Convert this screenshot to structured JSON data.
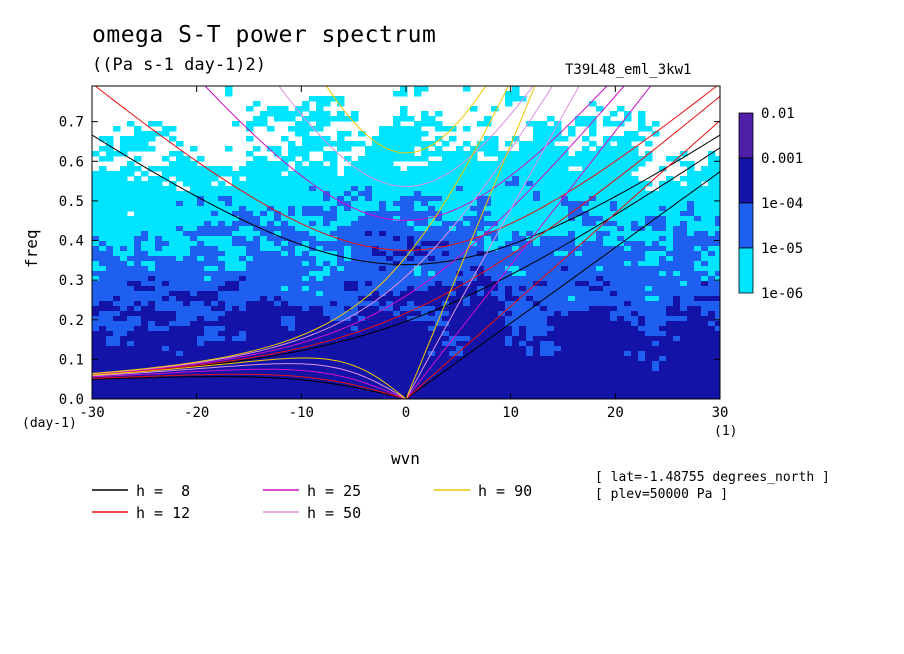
{
  "title": "omega S-T power spectrum",
  "units": "((Pa s-1 day-1)2)",
  "run_id": "T39L48_eml_3kw1",
  "notes": [
    "[ lat=-1.48755 degrees_north ]",
    "[ plev=50000 Pa ]"
  ],
  "chart_data": {
    "type": "heatmap",
    "xlabel": "wvn",
    "ylabel": "freq",
    "x_unit": "(1)",
    "y_unit": "(day-1)",
    "xlim": [
      -30,
      30
    ],
    "ylim": [
      0,
      0.79
    ],
    "x_ticks": [
      -30,
      -20,
      -10,
      0,
      10,
      20,
      30
    ],
    "x_tick_labels": [
      "-30",
      "-20",
      "-10",
      "0",
      "10",
      "20",
      "30"
    ],
    "y_ticks": [
      0.0,
      0.1,
      0.2,
      0.3,
      0.4,
      0.5,
      0.6,
      0.7
    ],
    "y_tick_labels": [
      "0.0",
      "0.1",
      "0.2",
      "0.3",
      "0.4",
      "0.5",
      "0.6",
      "0.7"
    ],
    "colorbar": {
      "levels": [
        "0.01",
        "0.001",
        "1e-04",
        "1e-05",
        "1e-06"
      ],
      "colors": [
        "#4f1fa8",
        "#1313a8",
        "#1e5ff0",
        "#00e4ff"
      ]
    },
    "fill_colors": {
      "low": "#00e4ff",
      "mid": "#1e5ff0",
      "high": "#1313a8"
    },
    "dispersion_curves": [
      {
        "label": "h =  8",
        "h": 8,
        "color": "#000000"
      },
      {
        "label": "h = 12",
        "h": 12,
        "color": "#e81010"
      },
      {
        "label": "h = 25",
        "h": 25,
        "color": "#d010c8"
      },
      {
        "label": "h = 50",
        "h": 50,
        "color": "#e090e0"
      },
      {
        "label": "h = 90",
        "h": 90,
        "color": "#f0c800"
      }
    ]
  }
}
